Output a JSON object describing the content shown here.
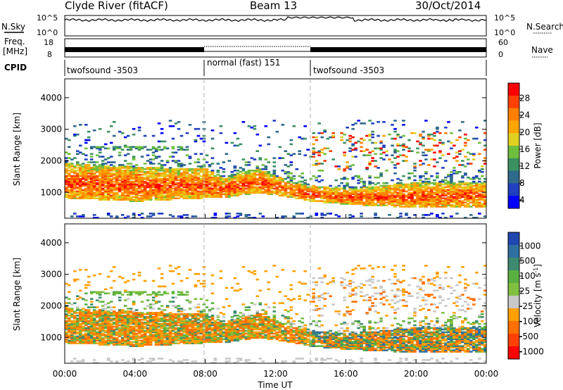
{
  "header": {
    "station": "Clyde River (fitACF)",
    "beam": "Beam 13",
    "date": "30/Oct/2014"
  },
  "left_labels": {
    "nsky": "N.Sky",
    "freq": "Freq.",
    "freq_unit": "[MHz]",
    "cpid": "CPID"
  },
  "right_labels": {
    "nsearch": "N.Search",
    "nave": "Nave"
  },
  "noise_axis": {
    "top": "10^5",
    "bottom": "10^0"
  },
  "freq_axis": {
    "top": "18",
    "bottom": "8"
  },
  "nave_axis": {
    "top": "60",
    "bottom": "0"
  },
  "cpid_segments": [
    {
      "label": "twofsound -3503",
      "start": 0,
      "end": 8
    },
    {
      "label": "normal (fast) 151",
      "start": 8,
      "end": 14
    },
    {
      "label": "twofsound -3503",
      "start": 14,
      "end": 24
    }
  ],
  "power_colorbar": {
    "label": "Power [dB]",
    "ticks": [
      "28",
      "24",
      "20",
      "16",
      "12",
      "8",
      "4"
    ],
    "colors": [
      "#ff0000",
      "#ff4000",
      "#ff8000",
      "#ffa500",
      "#e0d020",
      "#6fbf3f",
      "#3a9060",
      "#2e6a8a",
      "#2040c0",
      "#0000ff"
    ]
  },
  "velocity_colorbar": {
    "label": "Velocity [m s",
    "label_sup": "-1",
    "label_end": "]",
    "ticks": [
      "1000",
      "500",
      "100",
      "25",
      "-25",
      "-100",
      "-500",
      "-1000"
    ],
    "colors": [
      "#2046b0",
      "#2f6fa0",
      "#3d8a70",
      "#59b040",
      "#80c040",
      "#c8c8c8",
      "#ffa000",
      "#ff7000",
      "#ff4000",
      "#ff0000"
    ]
  },
  "axes": {
    "ylabel": "Slant Range [km]",
    "xlabel": "Time UT",
    "yticks": [
      "1000",
      "2000",
      "3000",
      "4000"
    ],
    "xticks": [
      "00:00",
      "04:00",
      "08:00",
      "12:00",
      "16:00",
      "20:00",
      "00:00"
    ]
  },
  "chart_data": {
    "type": "heatmap",
    "title": "Clyde River (fitACF) Beam 13 30/Oct/2014",
    "xlabel": "Time UT",
    "ylabel": "Slant Range [km]",
    "xlim": [
      0,
      24
    ],
    "ylim": [
      180,
      4600
    ],
    "panels": [
      {
        "name": "Power",
        "unit": "dB",
        "range": [
          3,
          30
        ]
      },
      {
        "name": "Velocity",
        "unit": "m s-1",
        "range": [
          -1000,
          1000
        ]
      }
    ],
    "backscatter_band": [
      {
        "t": 0,
        "lo": 800,
        "hi": 1900
      },
      {
        "t": 2,
        "lo": 750,
        "hi": 1850
      },
      {
        "t": 4,
        "lo": 700,
        "hi": 1800
      },
      {
        "t": 6,
        "lo": 750,
        "hi": 1750
      },
      {
        "t": 8,
        "lo": 800,
        "hi": 1750
      },
      {
        "t": 9,
        "lo": 800,
        "hi": 1400
      },
      {
        "t": 10,
        "lo": 900,
        "hi": 1600
      },
      {
        "t": 11,
        "lo": 950,
        "hi": 1750
      },
      {
        "t": 12,
        "lo": 900,
        "hi": 1500
      },
      {
        "t": 13,
        "lo": 800,
        "hi": 1300
      },
      {
        "t": 14,
        "lo": 700,
        "hi": 1200
      },
      {
        "t": 16,
        "lo": 600,
        "hi": 1100
      },
      {
        "t": 18,
        "lo": 550,
        "hi": 1200
      },
      {
        "t": 20,
        "lo": 500,
        "hi": 1300
      },
      {
        "t": 22,
        "lo": 500,
        "hi": 1300
      },
      {
        "t": 24,
        "lo": 500,
        "hi": 1300
      }
    ]
  }
}
